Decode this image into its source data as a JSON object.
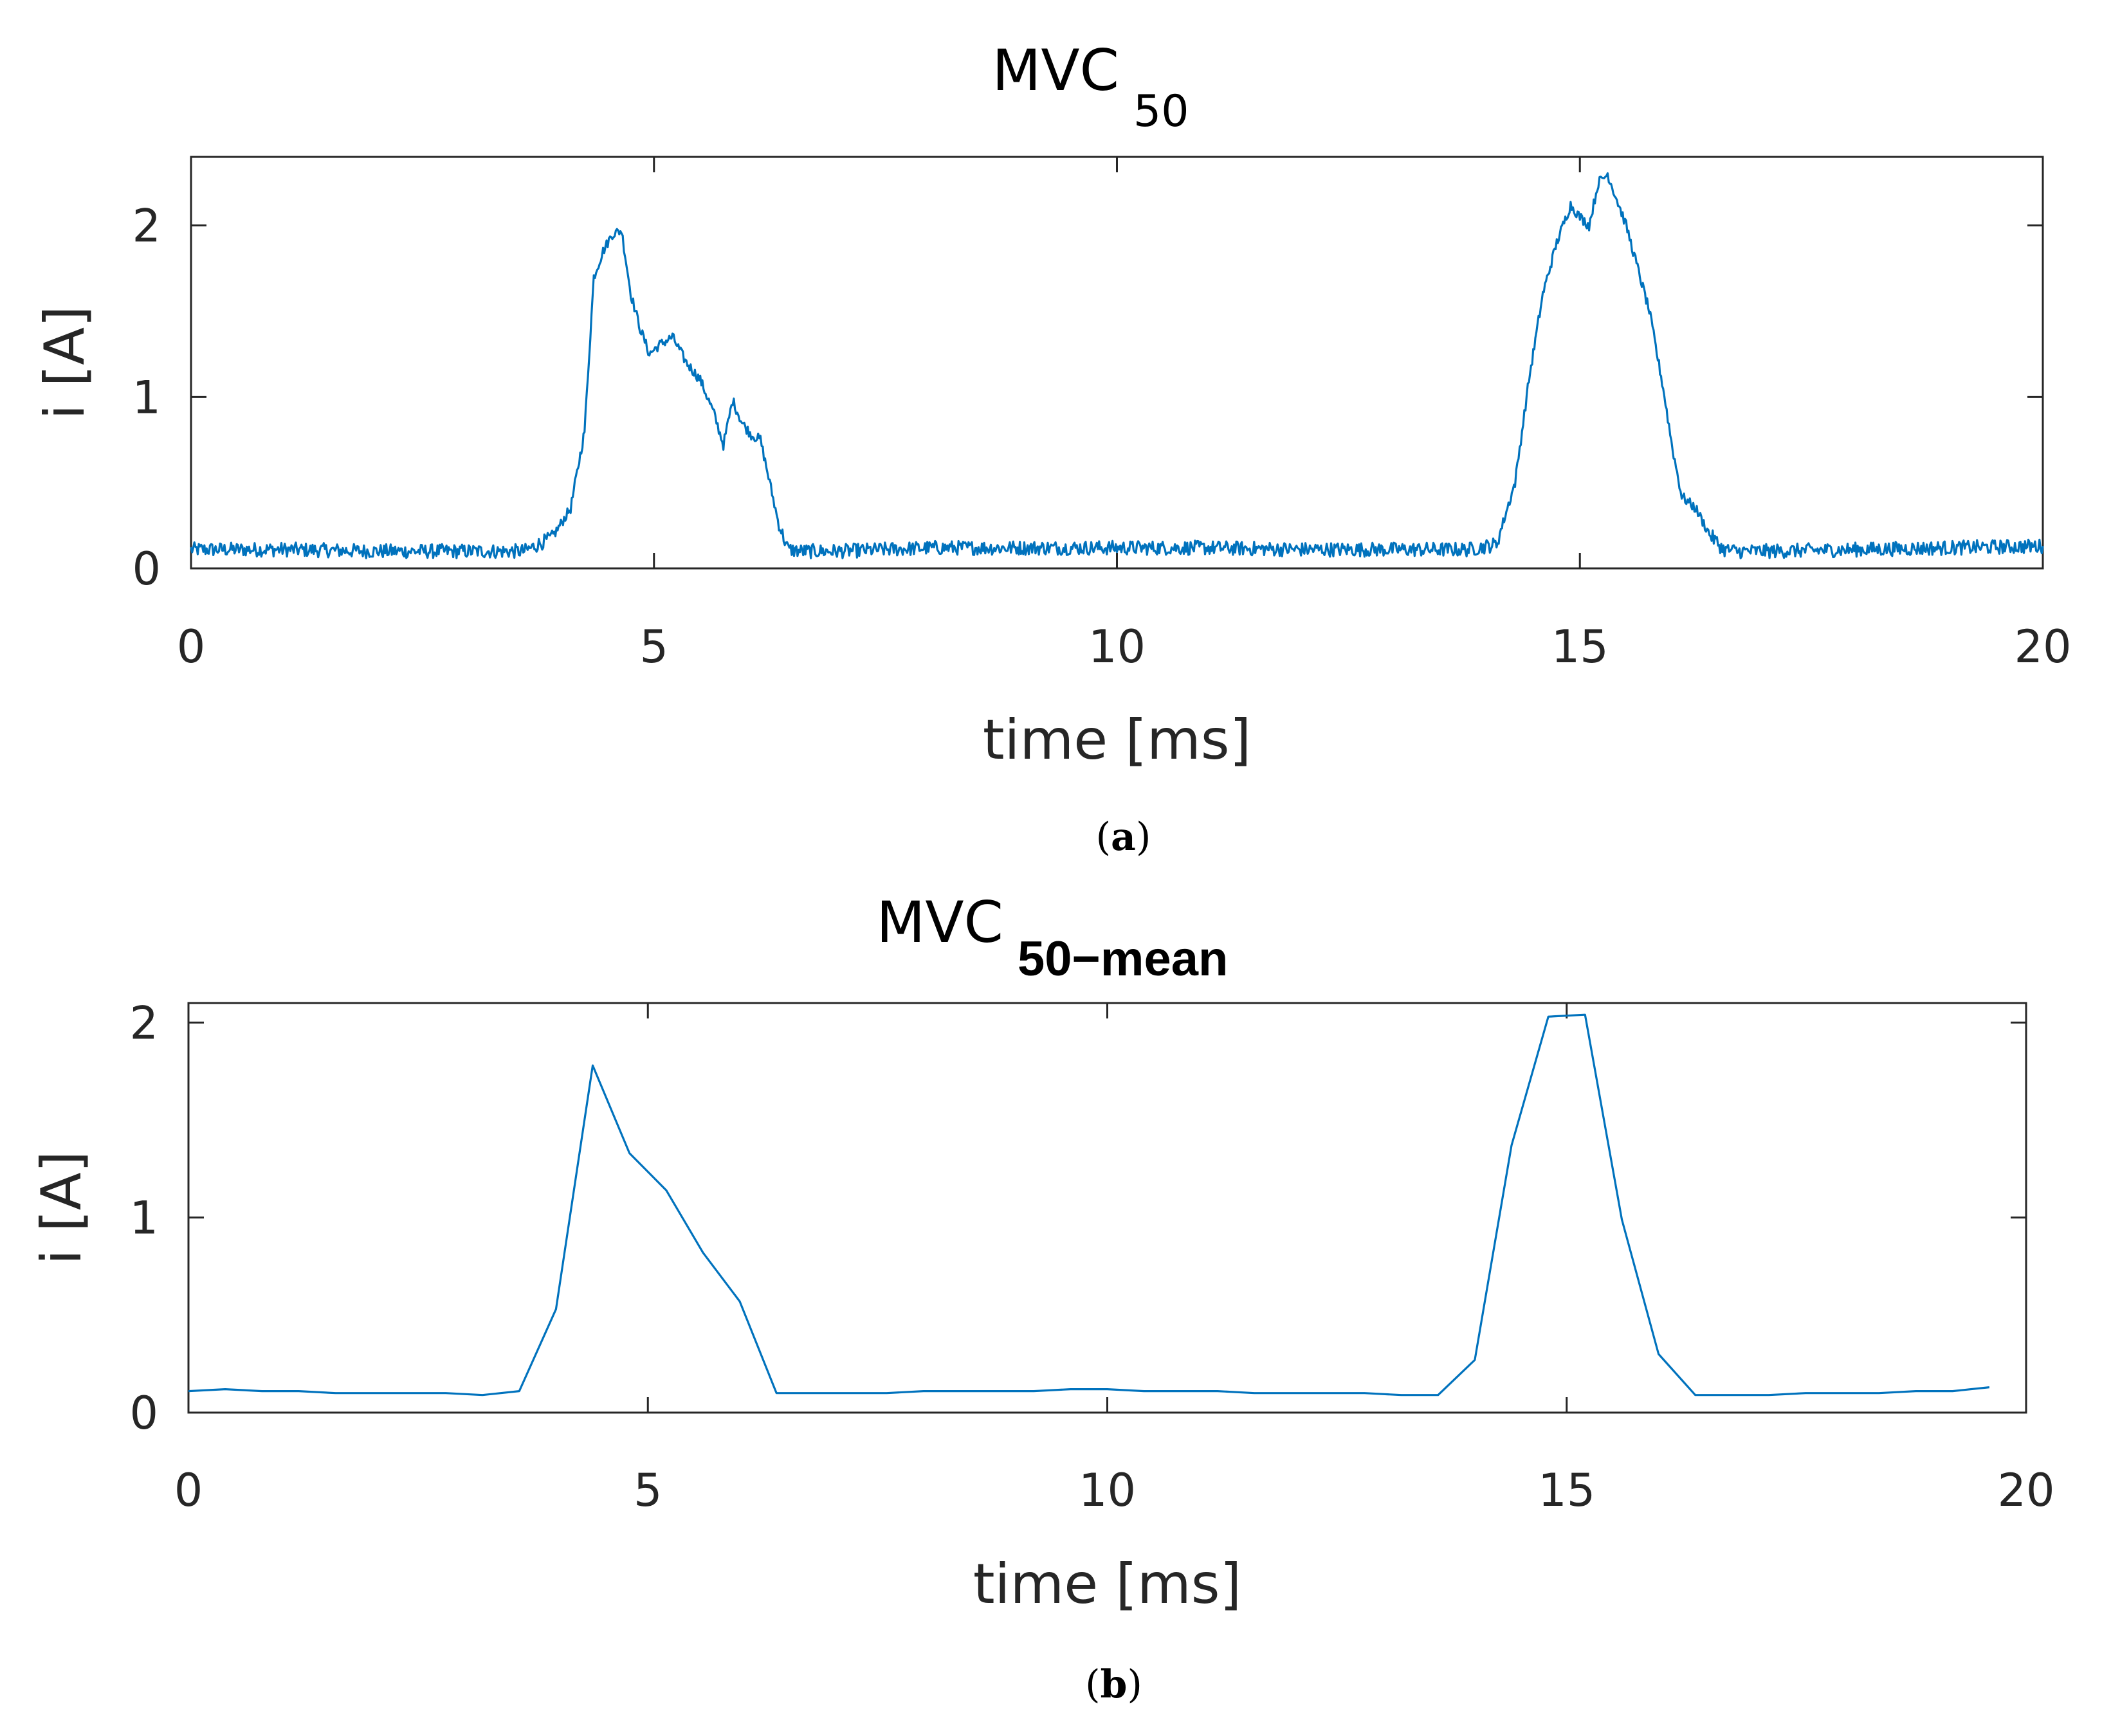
{
  "chart_data": [
    {
      "type": "line",
      "title": "MVC",
      "title_subscript": "50",
      "subscript_bold": false,
      "xlabel": "time [ms]",
      "ylabel": "i [A]",
      "xlim": [
        0,
        20
      ],
      "ylim": [
        0,
        2.4
      ],
      "xticks": [
        "0",
        "5",
        "10",
        "15",
        "20"
      ],
      "yticks": [
        "0",
        "1",
        "2"
      ],
      "caption_open": "(",
      "caption_letter": "a",
      "caption_close": ")",
      "line_color": "#0072BD",
      "noise": 0.03,
      "series": [
        {
          "name": "MVC 50",
          "x": [
            0,
            1,
            2,
            3,
            3.6,
            3.9,
            4.1,
            4.25,
            4.35,
            4.45,
            4.55,
            4.65,
            4.75,
            4.85,
            4.95,
            5.05,
            5.2,
            5.35,
            5.5,
            5.65,
            5.75,
            5.85,
            5.95,
            6.05,
            6.15,
            6.25,
            6.35,
            6.45,
            6.6,
            6.8,
            7,
            8,
            9,
            10,
            11,
            12,
            13,
            13.8,
            14.1,
            14.3,
            14.45,
            14.6,
            14.75,
            14.9,
            15.0,
            15.1,
            15.2,
            15.3,
            15.4,
            15.5,
            15.6,
            15.75,
            15.9,
            16.0,
            16.1,
            16.25,
            16.4,
            16.55,
            16.7,
            17,
            18,
            19,
            20
          ],
          "y": [
            0.11,
            0.11,
            0.1,
            0.1,
            0.1,
            0.18,
            0.35,
            0.8,
            1.7,
            1.85,
            1.95,
            1.97,
            1.6,
            1.4,
            1.25,
            1.3,
            1.35,
            1.2,
            1.1,
            0.9,
            0.72,
            0.98,
            0.85,
            0.78,
            0.75,
            0.5,
            0.25,
            0.11,
            0.1,
            0.1,
            0.1,
            0.12,
            0.12,
            0.12,
            0.12,
            0.11,
            0.11,
            0.11,
            0.14,
            0.5,
            1.1,
            1.6,
            1.9,
            2.12,
            2.05,
            2.0,
            2.25,
            2.3,
            2.15,
            2.0,
            1.8,
            1.5,
            1.05,
            0.7,
            0.42,
            0.35,
            0.2,
            0.11,
            0.1,
            0.1,
            0.11,
            0.12,
            0.13
          ]
        }
      ]
    },
    {
      "type": "line",
      "title": "MVC",
      "title_subscript": "50−mean",
      "subscript_bold": true,
      "xlabel": "time [ms]",
      "ylabel": "i [A]",
      "xlim": [
        0,
        20
      ],
      "ylim": [
        0,
        2.1
      ],
      "xticks": [
        "0",
        "5",
        "10",
        "15",
        "20"
      ],
      "yticks": [
        "0",
        "1",
        "2"
      ],
      "caption_open": "(",
      "caption_letter": "b",
      "caption_close": ")",
      "line_color": "#0072BD",
      "noise": 0,
      "series": [
        {
          "name": "MVC 50-mean",
          "x": [
            0,
            0.4,
            0.8,
            1.2,
            1.6,
            2.0,
            2.4,
            2.8,
            3.2,
            3.6,
            4.0,
            4.4,
            4.8,
            5.2,
            5.6,
            6.0,
            6.4,
            6.8,
            7.2,
            7.6,
            8.0,
            8.4,
            8.8,
            9.2,
            9.6,
            10.0,
            10.4,
            10.8,
            11.2,
            11.6,
            12.0,
            12.4,
            12.8,
            13.2,
            13.6,
            14.0,
            14.4,
            14.8,
            15.2,
            15.6,
            16.0,
            16.4,
            16.8,
            17.2,
            17.6,
            18.0,
            18.4,
            18.8,
            19.2,
            19.6
          ],
          "y": [
            0.11,
            0.12,
            0.11,
            0.11,
            0.1,
            0.1,
            0.1,
            0.1,
            0.09,
            0.11,
            0.53,
            1.78,
            1.33,
            1.14,
            0.82,
            0.57,
            0.1,
            0.1,
            0.1,
            0.1,
            0.11,
            0.11,
            0.11,
            0.11,
            0.12,
            0.12,
            0.11,
            0.11,
            0.11,
            0.1,
            0.1,
            0.1,
            0.1,
            0.09,
            0.09,
            0.27,
            1.37,
            2.03,
            2.04,
            0.99,
            0.3,
            0.09,
            0.09,
            0.09,
            0.1,
            0.1,
            0.1,
            0.11,
            0.11,
            0.13
          ]
        }
      ]
    }
  ]
}
